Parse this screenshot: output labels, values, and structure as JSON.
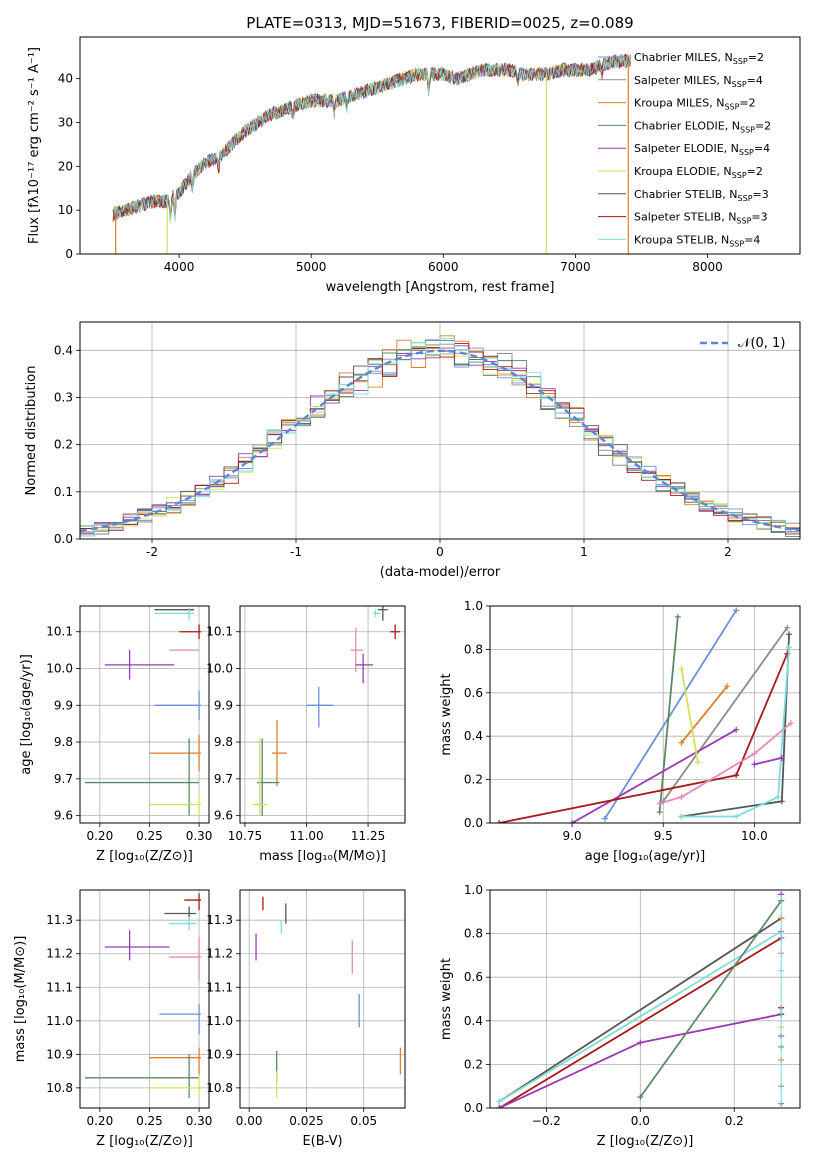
{
  "colors": {
    "chabrier_miles": "#6a8fdc",
    "salpeter_miles": "#8c8c8c",
    "kroupa_miles": "#e07d2a",
    "chabrier_elodie": "#5a8a66",
    "salpeter_elodie": "#9c38b6",
    "kroupa_elodie": "#cfe35a",
    "chabrier_stelib": "#555555",
    "salpeter_stelib": "#a81a1a",
    "kroupa_stelib": "#7fdcdc",
    "pink": "#e889b8",
    "normal_curve": "#5b86d6"
  },
  "chart_data": [
    {
      "id": "spectrum",
      "type": "line",
      "title": "PLATE=0313, MJD=51673, FIBERID=0025, z=0.089",
      "xlabel": "wavelength [Angstrom, rest frame]",
      "ylabel": "Flux [fλ10⁻¹⁷ erg cm⁻² s⁻¹ A⁻¹]",
      "xlim": [
        3250,
        8700
      ],
      "ylim": [
        0,
        49.5
      ],
      "xticks": [
        4000,
        5000,
        6000,
        7000,
        8000
      ],
      "yticks": [
        0,
        10,
        20,
        30,
        40
      ],
      "grid": false,
      "legend_position": "right",
      "legend": [
        {
          "label": "Chabrier MILES, N",
          "sub": "SSP",
          "tail": "=2",
          "color": "#6a8fdc"
        },
        {
          "label": "Salpeter MILES, N",
          "sub": "SSP",
          "tail": "=4",
          "color": "#8c8c8c"
        },
        {
          "label": "Kroupa MILES, N",
          "sub": "SSP",
          "tail": "=2",
          "color": "#e07d2a"
        },
        {
          "label": "Chabrier ELODIE, N",
          "sub": "SSP",
          "tail": "=2",
          "color": "#5a8a66"
        },
        {
          "label": "Salpeter ELODIE, N",
          "sub": "SSP",
          "tail": "=4",
          "color": "#9c38b6"
        },
        {
          "label": "Kroupa ELODIE, N",
          "sub": "SSP",
          "tail": "=2",
          "color": "#cfe35a"
        },
        {
          "label": "Chabrier STELIB, N",
          "sub": "SSP",
          "tail": "=3",
          "color": "#555555"
        },
        {
          "label": "Salpeter STELIB, N",
          "sub": "SSP",
          "tail": "=3",
          "color": "#a81a1a"
        },
        {
          "label": "Kroupa STELIB, N",
          "sub": "SSP",
          "tail": "=4",
          "color": "#7fdcdc"
        }
      ],
      "continuum": [
        [
          3500,
          9
        ],
        [
          3600,
          10
        ],
        [
          3700,
          11
        ],
        [
          3800,
          12
        ],
        [
          3900,
          12
        ],
        [
          4000,
          14
        ],
        [
          4100,
          18
        ],
        [
          4200,
          21
        ],
        [
          4300,
          22
        ],
        [
          4400,
          25
        ],
        [
          4500,
          28
        ],
        [
          4600,
          30
        ],
        [
          4700,
          32
        ],
        [
          4800,
          33
        ],
        [
          4900,
          34
        ],
        [
          5000,
          35
        ],
        [
          5100,
          35
        ],
        [
          5200,
          35
        ],
        [
          5300,
          36
        ],
        [
          5400,
          37
        ],
        [
          5500,
          38
        ],
        [
          5600,
          39
        ],
        [
          5700,
          40
        ],
        [
          5800,
          41
        ],
        [
          5900,
          41
        ],
        [
          6000,
          41
        ],
        [
          6100,
          40
        ],
        [
          6200,
          41
        ],
        [
          6300,
          42
        ],
        [
          6400,
          42
        ],
        [
          6500,
          42
        ],
        [
          6600,
          41
        ],
        [
          6700,
          41
        ],
        [
          6800,
          41
        ],
        [
          6900,
          42
        ],
        [
          7000,
          42
        ],
        [
          7100,
          42
        ],
        [
          7200,
          43
        ],
        [
          7300,
          44
        ],
        [
          7400,
          44
        ]
      ],
      "drops": [
        {
          "x": 3520,
          "to": 0,
          "color": "#e07d2a"
        },
        {
          "x": 3910,
          "to": 0,
          "color": "#cfe35a"
        },
        {
          "x": 6780,
          "to": 0,
          "color": "#cfe35a"
        },
        {
          "x": 7400,
          "to": 0,
          "color": "#e07d2a"
        }
      ]
    },
    {
      "id": "residuals",
      "type": "histogram",
      "xlabel": "(data-model)/error",
      "ylabel": "Normed distribution",
      "xlim": [
        -2.5,
        2.5
      ],
      "ylim": [
        0,
        0.46
      ],
      "xticks": [
        -2,
        -1,
        0,
        1,
        2
      ],
      "yticks": [
        0.0,
        0.1,
        0.2,
        0.3,
        0.4
      ],
      "grid": true,
      "bin_width": 0.1,
      "legend_position": "top-right",
      "curve": {
        "label": "𝒩(0, 1)",
        "mean": 0,
        "sigma": 1
      }
    },
    {
      "id": "age_vs_Z",
      "type": "errorbar",
      "xlabel": "Z [log₁₀(Z/Z⊙)]",
      "ylabel": "age  [log₁₀(age/yr)]",
      "xlim": [
        0.18,
        0.31
      ],
      "ylim": [
        9.58,
        10.17
      ],
      "xticks": [
        0.2,
        0.25,
        0.3
      ],
      "yticks": [
        9.6,
        9.7,
        9.8,
        9.9,
        10.0,
        10.1
      ],
      "grid": true,
      "points": [
        {
          "x": 0.275,
          "y": 10.16,
          "xlo": 0.255,
          "xhi": 0.295,
          "ylo": 10.16,
          "yhi": 10.16,
          "color": "#555555"
        },
        {
          "x": 0.29,
          "y": 10.15,
          "xlo": 0.255,
          "xhi": 0.295,
          "ylo": 10.13,
          "yhi": 10.165,
          "color": "#7fdcdc"
        },
        {
          "x": 0.3,
          "y": 10.1,
          "xlo": 0.28,
          "xhi": 0.302,
          "ylo": 10.08,
          "yhi": 10.12,
          "color": "#a81a1a"
        },
        {
          "x": 0.3,
          "y": 10.05,
          "xlo": 0.27,
          "xhi": 0.3,
          "ylo": 10.05,
          "yhi": 10.05,
          "color": "#e889b8"
        },
        {
          "x": 0.23,
          "y": 10.01,
          "xlo": 0.205,
          "xhi": 0.275,
          "ylo": 9.97,
          "yhi": 10.05,
          "color": "#9c38b6"
        },
        {
          "x": 0.3,
          "y": 9.9,
          "xlo": 0.255,
          "xhi": 0.302,
          "ylo": 9.86,
          "yhi": 9.94,
          "color": "#6a8fdc"
        },
        {
          "x": 0.3,
          "y": 9.77,
          "xlo": 0.25,
          "xhi": 0.302,
          "ylo": 9.72,
          "yhi": 9.82,
          "color": "#e07d2a"
        },
        {
          "x": 0.29,
          "y": 9.69,
          "xlo": 0.185,
          "xhi": 0.3,
          "ylo": 9.6,
          "yhi": 9.81,
          "color": "#5a8a66"
        },
        {
          "x": 0.3,
          "y": 9.63,
          "xlo": 0.25,
          "xhi": 0.302,
          "ylo": 9.6,
          "yhi": 9.66,
          "color": "#cfe35a"
        }
      ]
    },
    {
      "id": "age_vs_mass",
      "type": "errorbar",
      "xlabel": "mass [log₁₀(M/M⊙)]",
      "ylabel": "",
      "xlim": [
        10.73,
        11.4
      ],
      "ylim": [
        9.58,
        10.17
      ],
      "xticks": [
        10.75,
        11.0,
        11.25
      ],
      "yticks": [
        9.6,
        9.7,
        9.8,
        9.9,
        10.0,
        10.1
      ],
      "grid": true,
      "points": [
        {
          "x": 11.31,
          "y": 10.16,
          "xlo": 11.29,
          "xhi": 11.33,
          "ylo": 10.13,
          "yhi": 10.17,
          "color": "#555555"
        },
        {
          "x": 11.28,
          "y": 10.15,
          "xlo": 11.27,
          "xhi": 11.3,
          "ylo": 10.14,
          "yhi": 10.16,
          "color": "#7fdcdc"
        },
        {
          "x": 11.36,
          "y": 10.1,
          "xlo": 11.34,
          "xhi": 11.38,
          "ylo": 10.08,
          "yhi": 10.12,
          "color": "#a81a1a"
        },
        {
          "x": 11.2,
          "y": 10.05,
          "xlo": 11.18,
          "xhi": 11.23,
          "ylo": 9.99,
          "yhi": 10.11,
          "color": "#e889b8"
        },
        {
          "x": 11.23,
          "y": 10.01,
          "xlo": 11.2,
          "xhi": 11.27,
          "ylo": 9.96,
          "yhi": 10.04,
          "color": "#9c38b6"
        },
        {
          "x": 11.05,
          "y": 9.9,
          "xlo": 11.0,
          "xhi": 11.11,
          "ylo": 9.84,
          "yhi": 9.95,
          "color": "#6a8fdc"
        },
        {
          "x": 10.88,
          "y": 9.77,
          "xlo": 10.86,
          "xhi": 10.92,
          "ylo": 9.68,
          "yhi": 9.86,
          "color": "#e07d2a"
        },
        {
          "x": 10.82,
          "y": 9.69,
          "xlo": 10.8,
          "xhi": 10.89,
          "ylo": 9.6,
          "yhi": 9.81,
          "color": "#5a8a66"
        },
        {
          "x": 10.81,
          "y": 9.63,
          "xlo": 10.78,
          "xhi": 10.84,
          "ylo": 9.6,
          "yhi": 9.81,
          "color": "#cfe35a"
        }
      ]
    },
    {
      "id": "weight_vs_age",
      "type": "line",
      "xlabel": "age  [log₁₀(age/yr)]",
      "ylabel": "mass weight",
      "xlim": [
        8.55,
        10.25
      ],
      "ylim": [
        0,
        1
      ],
      "xticks": [
        9.0,
        9.5,
        10.0
      ],
      "yticks": [
        0.0,
        0.2,
        0.4,
        0.6,
        0.8,
        1.0
      ],
      "grid": true,
      "series": [
        {
          "color": "#6a8fdc",
          "points": [
            [
              9.18,
              0.02
            ],
            [
              9.9,
              0.98
            ]
          ]
        },
        {
          "color": "#8c8c8c",
          "points": [
            [
              9.5,
              0.1
            ],
            [
              10.18,
              0.9
            ]
          ]
        },
        {
          "color": "#e07d2a",
          "points": [
            [
              9.6,
              0.37
            ],
            [
              9.85,
              0.63
            ]
          ]
        },
        {
          "color": "#5a8a66",
          "points": [
            [
              9.48,
              0.05
            ],
            [
              9.58,
              0.95
            ]
          ]
        },
        {
          "color": "#9c38b6",
          "points": [
            [
              9.0,
              0.0
            ],
            [
              9.9,
              0.43
            ]
          ]
        },
        {
          "color": "#cfe35a",
          "points": [
            [
              9.6,
              0.71
            ],
            [
              9.69,
              0.28
            ]
          ]
        },
        {
          "color": "#555555",
          "points": [
            [
              9.6,
              0.03
            ],
            [
              10.15,
              0.1
            ],
            [
              10.19,
              0.87
            ]
          ]
        },
        {
          "color": "#a81a1a",
          "points": [
            [
              8.6,
              0.0
            ],
            [
              9.9,
              0.22
            ],
            [
              10.18,
              0.78
            ]
          ]
        },
        {
          "color": "#7fdcdc",
          "points": [
            [
              9.6,
              0.03
            ],
            [
              9.9,
              0.03
            ],
            [
              10.13,
              0.12
            ],
            [
              10.19,
              0.81
            ]
          ]
        },
        {
          "color": "#e889b8",
          "points": [
            [
              9.48,
              0.09
            ],
            [
              9.6,
              0.12
            ],
            [
              10.0,
              0.32
            ],
            [
              10.2,
              0.46
            ]
          ]
        },
        {
          "color": "#9c38b6",
          "points": [
            [
              10.0,
              0.27
            ],
            [
              10.15,
              0.3
            ]
          ]
        }
      ]
    },
    {
      "id": "mass_vs_Z",
      "type": "errorbar",
      "xlabel": "Z [log₁₀(Z/Z⊙)]",
      "ylabel": "mass [log₁₀(M/M⊙)]",
      "xlim": [
        0.18,
        0.31
      ],
      "ylim": [
        10.74,
        11.39
      ],
      "xticks": [
        0.2,
        0.25,
        0.3
      ],
      "yticks": [
        10.8,
        10.9,
        11.0,
        11.1,
        11.2,
        11.3
      ],
      "grid": true,
      "points": [
        {
          "x": 0.3,
          "y": 11.36,
          "xlo": 0.285,
          "xhi": 0.302,
          "ylo": 11.33,
          "yhi": 11.38,
          "color": "#a81a1a"
        },
        {
          "x": 0.29,
          "y": 11.32,
          "xlo": 0.265,
          "xhi": 0.297,
          "ylo": 11.3,
          "yhi": 11.34,
          "color": "#555555"
        },
        {
          "x": 0.29,
          "y": 11.29,
          "xlo": 0.27,
          "xhi": 0.297,
          "ylo": 11.27,
          "yhi": 11.31,
          "color": "#7fdcdc"
        },
        {
          "x": 0.23,
          "y": 11.22,
          "xlo": 0.205,
          "xhi": 0.27,
          "ylo": 11.18,
          "yhi": 11.27,
          "color": "#9c38b6"
        },
        {
          "x": 0.3,
          "y": 11.19,
          "xlo": 0.27,
          "xhi": 0.302,
          "ylo": 11.12,
          "yhi": 11.25,
          "color": "#e889b8"
        },
        {
          "x": 0.3,
          "y": 11.02,
          "xlo": 0.26,
          "xhi": 0.302,
          "ylo": 10.96,
          "yhi": 11.05,
          "color": "#6a8fdc"
        },
        {
          "x": 0.3,
          "y": 10.89,
          "xlo": 0.25,
          "xhi": 0.302,
          "ylo": 10.84,
          "yhi": 10.92,
          "color": "#e07d2a"
        },
        {
          "x": 0.29,
          "y": 10.83,
          "xlo": 0.185,
          "xhi": 0.3,
          "ylo": 10.77,
          "yhi": 10.9,
          "color": "#5a8a66"
        },
        {
          "x": 0.3,
          "y": 10.8,
          "xlo": 0.25,
          "xhi": 0.302,
          "ylo": 10.77,
          "yhi": 10.84,
          "color": "#cfe35a"
        }
      ]
    },
    {
      "id": "mass_vs_ebv",
      "type": "errorbar",
      "xlabel": "E(B-V)",
      "ylabel": "",
      "xlim": [
        -0.004,
        0.068
      ],
      "ylim": [
        10.74,
        11.39
      ],
      "xticks": [
        0.0,
        0.025,
        0.05
      ],
      "yticks": [
        10.8,
        10.9,
        11.0,
        11.1,
        11.2,
        11.3
      ],
      "grid": true,
      "points": [
        {
          "x": 0.006,
          "y": 11.35,
          "xlo": 0.006,
          "xhi": 0.006,
          "ylo": 11.33,
          "yhi": 11.37,
          "color": "#a81a1a"
        },
        {
          "x": 0.016,
          "y": 11.32,
          "xlo": 0.016,
          "xhi": 0.016,
          "ylo": 11.29,
          "yhi": 11.35,
          "color": "#555555"
        },
        {
          "x": 0.014,
          "y": 11.28,
          "xlo": 0.014,
          "xhi": 0.014,
          "ylo": 11.26,
          "yhi": 11.3,
          "color": "#7fdcdc"
        },
        {
          "x": 0.003,
          "y": 11.22,
          "xlo": 0.003,
          "xhi": 0.003,
          "ylo": 11.18,
          "yhi": 11.26,
          "color": "#9c38b6"
        },
        {
          "x": 0.045,
          "y": 11.19,
          "xlo": 0.045,
          "xhi": 0.045,
          "ylo": 11.14,
          "yhi": 11.24,
          "color": "#e889b8"
        },
        {
          "x": 0.048,
          "y": 11.03,
          "xlo": 0.048,
          "xhi": 0.048,
          "ylo": 10.98,
          "yhi": 11.08,
          "color": "#6a8fdc"
        },
        {
          "x": 0.066,
          "y": 10.88,
          "xlo": 0.066,
          "xhi": 0.066,
          "ylo": 10.84,
          "yhi": 10.92,
          "color": "#e07d2a"
        },
        {
          "x": 0.012,
          "y": 10.86,
          "xlo": 0.012,
          "xhi": 0.012,
          "ylo": 10.82,
          "yhi": 10.91,
          "color": "#5a8a66"
        },
        {
          "x": 0.012,
          "y": 10.81,
          "xlo": 0.012,
          "xhi": 0.012,
          "ylo": 10.77,
          "yhi": 10.85,
          "color": "#cfe35a"
        }
      ]
    },
    {
      "id": "weight_vs_Z",
      "type": "line",
      "xlabel": "Z [log₁₀(Z/Z⊙)]",
      "ylabel": "mass weight",
      "xlim": [
        -0.32,
        0.34
      ],
      "ylim": [
        0,
        1
      ],
      "xticks": [
        -0.2,
        0.0,
        0.2
      ],
      "yticks": [
        0.0,
        0.2,
        0.4,
        0.6,
        0.8,
        1.0
      ],
      "grid": true,
      "series": [
        {
          "color": "#555555",
          "points": [
            [
              -0.3,
              0.03
            ],
            [
              0.3,
              0.87
            ]
          ]
        },
        {
          "color": "#7fdcdc",
          "points": [
            [
              -0.3,
              0.03
            ],
            [
              0.3,
              0.81
            ]
          ]
        },
        {
          "color": "#a81a1a",
          "points": [
            [
              -0.3,
              0.0
            ],
            [
              0.3,
              0.78
            ]
          ]
        },
        {
          "color": "#9c38b6",
          "points": [
            [
              -0.3,
              0.0
            ],
            [
              0.0,
              0.3
            ],
            [
              0.3,
              0.43
            ]
          ]
        },
        {
          "color": "#5a8a66",
          "points": [
            [
              0.0,
              0.05
            ],
            [
              0.3,
              0.95
            ]
          ]
        }
      ],
      "markers_at_x": 0.3,
      "marker_values": [
        0.02,
        0.1,
        0.22,
        0.28,
        0.33,
        0.37,
        0.43,
        0.46,
        0.63,
        0.71,
        0.78,
        0.81,
        0.87,
        0.95,
        0.98
      ]
    }
  ]
}
